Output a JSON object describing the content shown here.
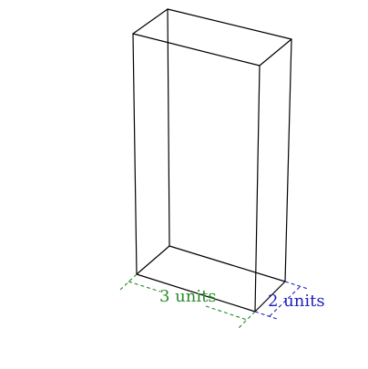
{
  "labels": {
    "width": "3 units",
    "depth": "2 units"
  },
  "colors": {
    "edges": "#000000",
    "width_dimension": "#2a8a2a",
    "depth_dimension": "#1f1fbf",
    "background": "#ffffff"
  }
}
